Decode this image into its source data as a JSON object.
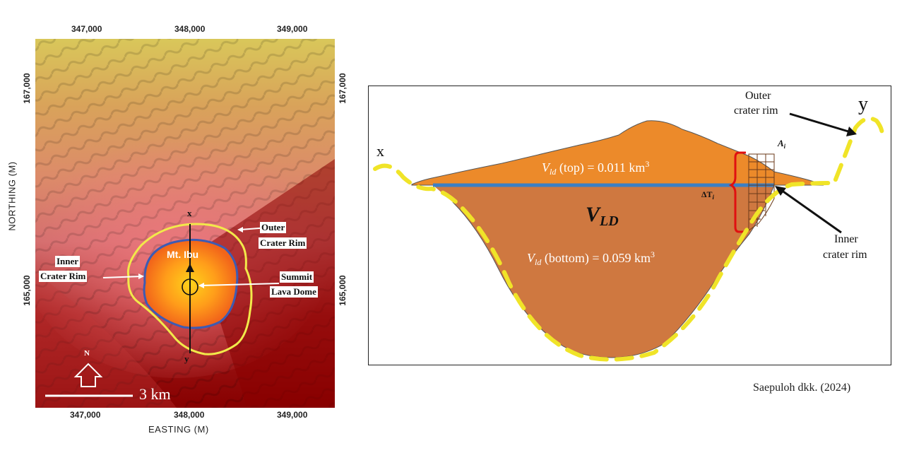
{
  "map": {
    "easting_ticks_top": [
      "347,000",
      "348,000",
      "349,000"
    ],
    "easting_ticks_bottom": [
      "347,000",
      "348,000",
      "349,000"
    ],
    "northing_ticks_left": [
      "167,000",
      "165,000"
    ],
    "northing_ticks_right": [
      "167,000",
      "165,000"
    ],
    "x_axis_title": "EASTING (M)",
    "y_axis_title": "NORTHING (M)",
    "volcano_name": "Mt. Ibu",
    "labels": {
      "outer_line1": "Outer",
      "outer_line2": "Crater Rim",
      "inner_line1": "Inner",
      "inner_line2": "Crater Rim",
      "summit_line1": "Summit",
      "summit_line2": "Lava Dome"
    },
    "profile_start": "x",
    "profile_end": "y",
    "north_letter": "N",
    "scale_text": "3 km",
    "colors": {
      "outer_rim": "#f2e94a",
      "inner_rim": "#3d5bb3",
      "relief_low": "#8b0000",
      "relief_high": "#d9c75a"
    }
  },
  "cross_section": {
    "label_x": "x",
    "label_y": "y",
    "outer_label_line1": "Outer",
    "outer_label_line2": "crater rim",
    "inner_label_line1": "Inner",
    "inner_label_line2": "crater rim",
    "v_top": {
      "symbol": "V",
      "sub": "ld",
      "text": " (top) = 0.011 km",
      "sup": "3"
    },
    "v_bottom": {
      "symbol": "V",
      "sub": "ld",
      "text": " (bottom) = 0.059 km",
      "sup": "3"
    },
    "v_ld": {
      "symbol": "V",
      "sub": "LD"
    },
    "a_i": {
      "symbol": "A",
      "sub": "i"
    },
    "delta_t": {
      "symbol": "ΔT",
      "sub": "i"
    },
    "colors": {
      "top_fill": "#ec8a2a",
      "bottom_fill": "#cf7840",
      "divider": "#3b7fc4",
      "rim_dash": "#f0e428",
      "bracket": "#e01010"
    }
  },
  "credit": "Saepuloh dkk. (2024)"
}
